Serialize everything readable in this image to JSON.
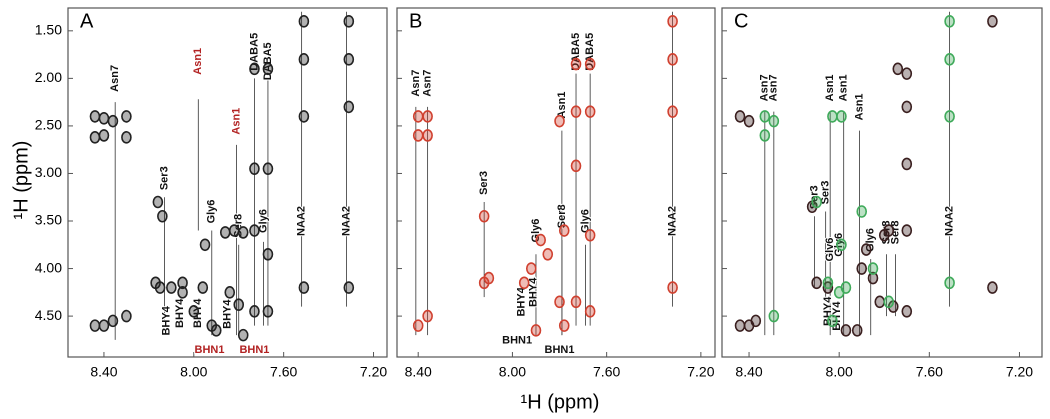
{
  "axis_labels": {
    "x": "¹H (ppm)",
    "y": "¹H (ppm)"
  },
  "chart_data": [
    {
      "type": "scatter",
      "title": "A",
      "xlim": [
        8.56,
        7.14
      ],
      "ylim": [
        1.26,
        4.93
      ],
      "xticks": [
        {
          "value": 8.4,
          "label": "8.40"
        },
        {
          "value": 8.0,
          "label": "8.00"
        },
        {
          "value": 7.6,
          "label": "7.60"
        },
        {
          "value": 7.2,
          "label": "7.20"
        }
      ],
      "yticks": [
        {
          "value": 1.5,
          "label": "1.50"
        },
        {
          "value": 2.0,
          "label": "2.00"
        },
        {
          "value": 2.5,
          "label": "2.50"
        },
        {
          "value": 3.0,
          "label": "3.00"
        },
        {
          "value": 3.5,
          "label": "3.50"
        },
        {
          "value": 4.0,
          "label": "4.00"
        },
        {
          "value": 4.5,
          "label": "4.50"
        }
      ],
      "series": [
        {
          "color": "#222222",
          "x": [
            8.44,
            8.44,
            8.44,
            8.4,
            8.4,
            8.4,
            8.36,
            8.36,
            8.3,
            8.3,
            8.3,
            8.16,
            8.14,
            8.17,
            8.15,
            8.1,
            8.05,
            8.05,
            8.0,
            7.96,
            7.95,
            7.92,
            7.9,
            7.86,
            7.84,
            7.82,
            7.8,
            7.78,
            7.78,
            7.73,
            7.73,
            7.73,
            7.73,
            7.67,
            7.67,
            7.67,
            7.67,
            7.51,
            7.51,
            7.51,
            7.51,
            7.31,
            7.31,
            7.31,
            7.31
          ],
          "y": [
            2.4,
            2.62,
            4.6,
            2.42,
            2.6,
            4.6,
            2.45,
            4.55,
            2.4,
            2.62,
            4.5,
            3.3,
            3.45,
            4.15,
            4.2,
            4.2,
            4.15,
            4.25,
            4.45,
            4.2,
            3.75,
            4.6,
            4.65,
            3.62,
            4.25,
            3.6,
            4.38,
            3.62,
            4.7,
            1.9,
            2.95,
            3.6,
            4.45,
            1.9,
            2.95,
            3.85,
            4.45,
            1.4,
            1.8,
            2.4,
            4.2,
            1.4,
            1.8,
            2.3,
            4.2
          ]
        }
      ],
      "annotations": [
        {
          "text": "Asn7",
          "color": "#111111"
        },
        {
          "text": "Asn1",
          "color": "#b22222"
        },
        {
          "text": "DABA5",
          "color": "#111111"
        },
        {
          "text": "DABA5",
          "color": "#111111"
        },
        {
          "text": "Asn1",
          "color": "#b22222"
        },
        {
          "text": "Ser3",
          "color": "#111111"
        },
        {
          "text": "Gly6",
          "color": "#111111"
        },
        {
          "text": "Ser8",
          "color": "#111111"
        },
        {
          "text": "Gly6",
          "color": "#111111"
        },
        {
          "text": "NAA2",
          "color": "#111111"
        },
        {
          "text": "NAA2",
          "color": "#111111"
        },
        {
          "text": "BHY4",
          "color": "#111111"
        },
        {
          "text": "BHY4",
          "color": "#111111"
        },
        {
          "text": "BHY4",
          "color": "#111111"
        },
        {
          "text": "BHY4",
          "color": "#111111"
        },
        {
          "text": "BHN1",
          "color": "#b22222"
        },
        {
          "text": "BHN1",
          "color": "#b22222"
        }
      ]
    },
    {
      "type": "scatter",
      "title": "B",
      "xlim": [
        8.49,
        7.14
      ],
      "ylim": [
        1.26,
        4.93
      ],
      "xticks": [
        {
          "value": 8.4,
          "label": "8.40"
        },
        {
          "value": 8.0,
          "label": "8.00"
        },
        {
          "value": 7.6,
          "label": "7.60"
        },
        {
          "value": 7.2,
          "label": "7.20"
        }
      ],
      "yticks": [
        1.5,
        2.0,
        2.5,
        3.0,
        3.5,
        4.0,
        4.5
      ],
      "series": [
        {
          "color": "#d0402f",
          "x": [
            8.4,
            8.4,
            8.4,
            8.36,
            8.36,
            8.36,
            8.12,
            8.1,
            8.12,
            7.95,
            7.92,
            7.9,
            7.88,
            7.85,
            7.8,
            7.8,
            7.78,
            7.78,
            7.73,
            7.73,
            7.73,
            7.73,
            7.67,
            7.67,
            7.67,
            7.67,
            7.32,
            7.32,
            7.32,
            7.32
          ],
          "y": [
            2.4,
            2.6,
            4.6,
            2.4,
            2.6,
            4.5,
            3.45,
            4.1,
            4.15,
            4.15,
            4.0,
            4.65,
            3.7,
            3.85,
            2.45,
            4.35,
            3.6,
            4.6,
            1.85,
            2.35,
            2.92,
            4.35,
            1.85,
            2.35,
            3.65,
            4.45,
            1.4,
            1.8,
            2.35,
            4.2
          ]
        }
      ],
      "annotations": [
        {
          "text": "Asn7",
          "color": "#111111"
        },
        {
          "text": "Asn7",
          "color": "#111111"
        },
        {
          "text": "DABA5",
          "color": "#111111"
        },
        {
          "text": "DABA5",
          "color": "#111111"
        },
        {
          "text": "Asn1",
          "color": "#111111"
        },
        {
          "text": "Ser3",
          "color": "#111111"
        },
        {
          "text": "Gly6",
          "color": "#111111"
        },
        {
          "text": "Ser8",
          "color": "#111111"
        },
        {
          "text": "Gly6",
          "color": "#111111"
        },
        {
          "text": "NAA2",
          "color": "#111111"
        },
        {
          "text": "BHY4",
          "color": "#111111"
        },
        {
          "text": "BHY4",
          "color": "#111111"
        },
        {
          "text": "BHN1",
          "color": "#111111"
        },
        {
          "text": "BHN1",
          "color": "#111111"
        }
      ]
    },
    {
      "type": "scatter",
      "title": "C",
      "xlim": [
        8.52,
        7.1
      ],
      "ylim": [
        1.26,
        4.93
      ],
      "xticks": [
        {
          "value": 8.4,
          "label": "8.40"
        },
        {
          "value": 8.0,
          "label": "8.00"
        },
        {
          "value": 7.6,
          "label": "7.60"
        },
        {
          "value": 7.2,
          "label": "7.20"
        }
      ],
      "yticks": [
        1.5,
        2.0,
        2.5,
        3.0,
        3.5,
        4.0,
        4.5
      ],
      "series": [
        {
          "color": "#3a1f1f",
          "x": [
            8.44,
            8.44,
            8.4,
            8.4,
            8.37,
            8.12,
            8.1,
            8.05,
            7.97,
            7.92,
            7.9,
            7.88,
            7.85,
            7.82,
            7.8,
            7.78,
            7.76,
            7.74,
            7.7,
            7.7,
            7.7,
            7.7,
            7.7,
            7.32,
            7.32
          ],
          "y": [
            2.4,
            4.6,
            2.45,
            4.6,
            4.55,
            3.35,
            4.15,
            4.2,
            4.65,
            4.65,
            4.0,
            3.8,
            4.1,
            4.35,
            3.65,
            3.6,
            4.4,
            1.9,
            1.95,
            2.3,
            2.9,
            3.6,
            4.45,
            1.4,
            4.2
          ]
        },
        {
          "color": "#3faa5a",
          "x": [
            8.33,
            8.33,
            8.29,
            8.29,
            8.03,
            8.03,
            7.99,
            7.99,
            7.97,
            7.9,
            7.85,
            7.78,
            7.51,
            7.51,
            7.51,
            7.51,
            8.05,
            8.0,
            8.1
          ],
          "y": [
            2.4,
            2.6,
            2.45,
            4.5,
            2.4,
            4.55,
            2.4,
            3.75,
            4.2,
            3.4,
            4.0,
            4.35,
            1.4,
            1.8,
            2.4,
            4.15,
            4.15,
            4.25,
            3.3
          ]
        }
      ],
      "annotations": [
        {
          "text": "Asn7",
          "color": "#111111"
        },
        {
          "text": "Asn7",
          "color": "#111111"
        },
        {
          "text": "Asn1",
          "color": "#111111"
        },
        {
          "text": "Asn1",
          "color": "#111111"
        },
        {
          "text": "Asn1",
          "color": "#111111"
        },
        {
          "text": "Ser3",
          "color": "#111111"
        },
        {
          "text": "Ser3",
          "color": "#111111"
        },
        {
          "text": "Gly6",
          "color": "#111111"
        },
        {
          "text": "Gly6",
          "color": "#111111"
        },
        {
          "text": "Gly6",
          "color": "#111111"
        },
        {
          "text": "Ser8",
          "color": "#111111"
        },
        {
          "text": "Ser8",
          "color": "#111111"
        },
        {
          "text": "NAA2",
          "color": "#111111"
        },
        {
          "text": "BHY4",
          "color": "#111111"
        },
        {
          "text": "BHY4",
          "color": "#111111"
        }
      ]
    }
  ]
}
